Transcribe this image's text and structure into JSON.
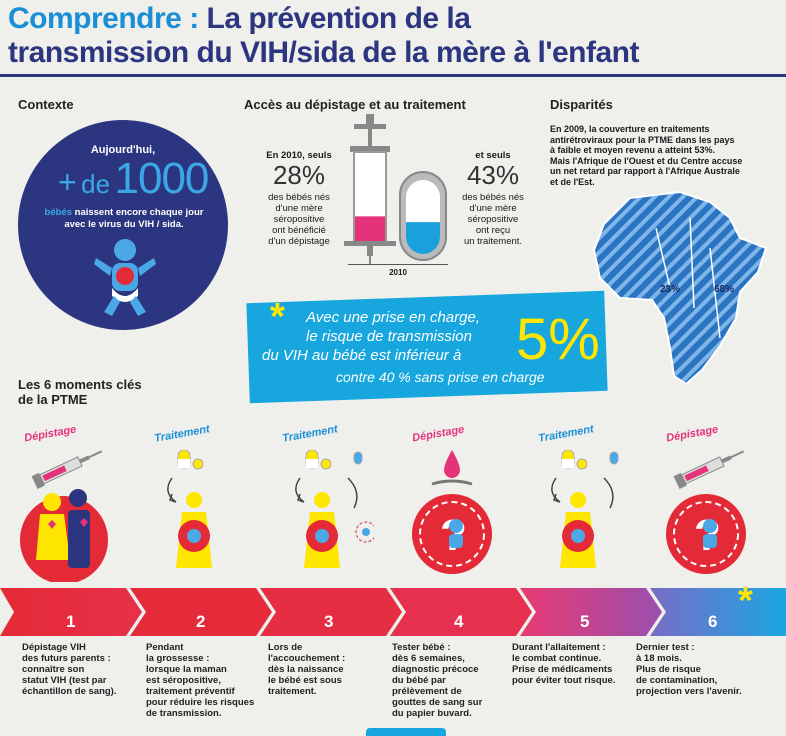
{
  "title": {
    "prefix": "Comprendre :",
    "line1": "La prévention de la",
    "line2": "transmission du VIH/sida de la mère à l'enfant"
  },
  "contexte": {
    "heading": "Contexte",
    "intro": "Aujourd'hui,",
    "plus": "+",
    "de": "de",
    "number": "1000",
    "line1_blue": "bébés",
    "line1_rest": "naissent encore chaque jour",
    "line2": "avec le virus du VIH / sida."
  },
  "acces": {
    "heading": "Accès au dépistage et au traitement",
    "left_intro": "En 2010, seuls",
    "left_pct": "28%",
    "left_lines": [
      "des bébés nés",
      "d'une mère",
      "séropositive",
      "ont bénéficié",
      "d'un dépistage"
    ],
    "right_intro": "et seuls",
    "right_pct": "43%",
    "right_lines": [
      "des bébés nés",
      "d'une mère",
      "séropositive",
      "ont reçu",
      "un traitement."
    ],
    "year": "2010",
    "screening_pct": 28,
    "treatment_pct": 43
  },
  "disparites": {
    "heading": "Disparités",
    "lines": [
      "En 2009, la couverture en traitements",
      "antirétroviraux pour la PTME dans les pays",
      "à faible et moyen revenu a atteint 53%.",
      "Mais l'Afrique de l'Ouest et du Centre accuse",
      "un net retard par rapport à l'Afrique Australe",
      "et de l'Est."
    ],
    "west_pct": "23%",
    "east_pct": "68%"
  },
  "callout": {
    "star": "*",
    "line1": "Avec une prise en charge,",
    "line2": "le risque de transmission",
    "line3": "du VIH au bébé est inférieur à",
    "big": "5%",
    "line4": "contre 40 % sans prise en charge"
  },
  "moments": {
    "heading_line1": "Les 6 moments clés",
    "heading_line2": "de la PTME",
    "labels": [
      "Dépistage",
      "Traitement",
      "Traitement",
      "Dépistage",
      "Traitement",
      "Dépistage"
    ],
    "numbers": [
      "1",
      "2",
      "3",
      "4",
      "5",
      "6"
    ],
    "texts": [
      [
        "Dépistage VIH",
        "des futurs parents :",
        "connaître son",
        "statut VIH (test par",
        "échantillon de sang)."
      ],
      [
        "Pendant",
        "la grossesse :",
        "lorsque la maman",
        "est séropositive,",
        "traitement préventif",
        "pour réduire les risques",
        "de transmission."
      ],
      [
        "Lors de",
        "l'accouchement :",
        "dès la naissance",
        "le bébé est sous",
        "traitement."
      ],
      [
        "Tester bébé :",
        "dès 6 semaines,",
        "diagnostic précoce",
        "du bébé par",
        "prélèvement de",
        "gouttes de sang sur",
        "du papier buvard."
      ],
      [
        "Durant l'allaitement :",
        "le combat continue.",
        "Prise de médicaments",
        "pour éviter tout risque."
      ],
      [
        "Dernier test :",
        "à 18 mois.",
        "Plus de risque",
        "de contamination,",
        "projection vers l'avenir."
      ]
    ],
    "end_star": "*"
  },
  "colors": {
    "navy": "#2c3580",
    "blue": "#1a8fd6",
    "cyan": "#17a6dd",
    "pink": "#e5337a",
    "red": "#e42a36",
    "yellow": "#ffe600"
  }
}
